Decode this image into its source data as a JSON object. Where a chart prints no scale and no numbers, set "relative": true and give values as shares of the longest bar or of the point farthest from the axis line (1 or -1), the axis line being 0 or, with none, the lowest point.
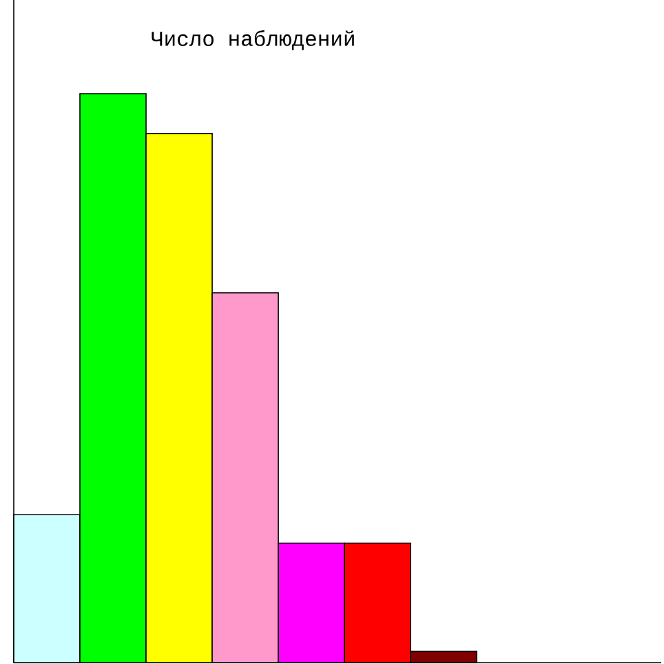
{
  "chart_data": {
    "type": "bar",
    "title": "Число наблюдений",
    "categories": [
      null,
      null,
      null,
      null,
      null,
      null,
      null
    ],
    "values": [
      0.26,
      1,
      0.93,
      0.65,
      0.21,
      0.21,
      0.02
    ],
    "colors": [
      "#ccffff",
      "#00ff00",
      "#ffff00",
      "#ff99cc",
      "#ff00ff",
      "#ff0000",
      "#800000"
    ],
    "relative": true
  }
}
